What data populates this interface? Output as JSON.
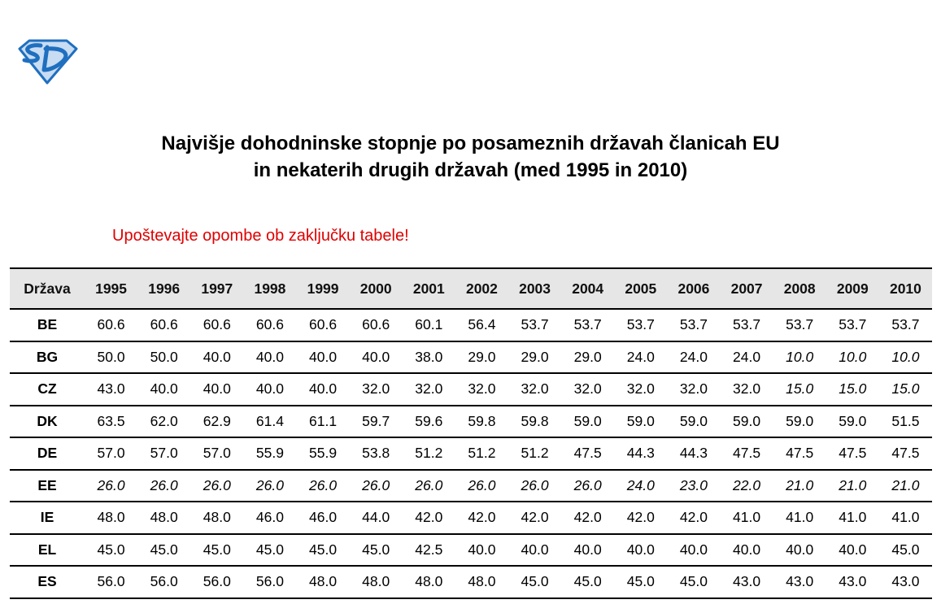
{
  "logo": {
    "text": "SD",
    "colors": {
      "primary": "#1f6fc0",
      "light": "#c8dcf2"
    }
  },
  "title": {
    "line1": "Najvišje dohodninske stopnje po posameznih državah članicah EU",
    "line2": "in nekaterih drugih državah (med 1995 in 2010)"
  },
  "note": "Upoštevajte opombe ob zaključku tabele!",
  "note_color": "#e00000",
  "table": {
    "headers": [
      "Država",
      "1995",
      "1996",
      "1997",
      "1998",
      "1999",
      "2000",
      "2001",
      "2002",
      "2003",
      "2004",
      "2005",
      "2006",
      "2007",
      "2008",
      "2009",
      "2010"
    ],
    "rows": [
      {
        "country": "BE",
        "values": [
          "60.6",
          "60.6",
          "60.6",
          "60.6",
          "60.6",
          "60.6",
          "60.1",
          "56.4",
          "53.7",
          "53.7",
          "53.7",
          "53.7",
          "53.7",
          "53.7",
          "53.7",
          "53.7"
        ],
        "italic": []
      },
      {
        "country": "BG",
        "values": [
          "50.0",
          "50.0",
          "40.0",
          "40.0",
          "40.0",
          "40.0",
          "38.0",
          "29.0",
          "29.0",
          "29.0",
          "24.0",
          "24.0",
          "24.0",
          "10.0",
          "10.0",
          "10.0"
        ],
        "italic": [
          "2008",
          "2009",
          "2010"
        ]
      },
      {
        "country": "CZ",
        "values": [
          "43.0",
          "40.0",
          "40.0",
          "40.0",
          "40.0",
          "32.0",
          "32.0",
          "32.0",
          "32.0",
          "32.0",
          "32.0",
          "32.0",
          "32.0",
          "15.0",
          "15.0",
          "15.0"
        ],
        "italic": [
          "2008",
          "2009",
          "2010"
        ]
      },
      {
        "country": "DK",
        "values": [
          "63.5",
          "62.0",
          "62.9",
          "61.4",
          "61.1",
          "59.7",
          "59.6",
          "59.8",
          "59.8",
          "59.0",
          "59.0",
          "59.0",
          "59.0",
          "59.0",
          "59.0",
          "51.5"
        ],
        "italic": []
      },
      {
        "country": "DE",
        "values": [
          "57.0",
          "57.0",
          "57.0",
          "55.9",
          "55.9",
          "53.8",
          "51.2",
          "51.2",
          "51.2",
          "47.5",
          "44.3",
          "44.3",
          "47.5",
          "47.5",
          "47.5",
          "47.5"
        ],
        "italic": []
      },
      {
        "country": "EE",
        "values": [
          "26.0",
          "26.0",
          "26.0",
          "26.0",
          "26.0",
          "26.0",
          "26.0",
          "26.0",
          "26.0",
          "26.0",
          "24.0",
          "23.0",
          "22.0",
          "21.0",
          "21.0",
          "21.0"
        ],
        "italic": [
          "1995",
          "1996",
          "1997",
          "1998",
          "1999",
          "2000",
          "2001",
          "2002",
          "2003",
          "2004",
          "2005",
          "2006",
          "2007",
          "2008",
          "2009",
          "2010"
        ]
      },
      {
        "country": "IE",
        "values": [
          "48.0",
          "48.0",
          "48.0",
          "46.0",
          "46.0",
          "44.0",
          "42.0",
          "42.0",
          "42.0",
          "42.0",
          "42.0",
          "42.0",
          "41.0",
          "41.0",
          "41.0",
          "41.0"
        ],
        "italic": []
      },
      {
        "country": "EL",
        "values": [
          "45.0",
          "45.0",
          "45.0",
          "45.0",
          "45.0",
          "45.0",
          "42.5",
          "40.0",
          "40.0",
          "40.0",
          "40.0",
          "40.0",
          "40.0",
          "40.0",
          "40.0",
          "45.0"
        ],
        "italic": []
      },
      {
        "country": "ES",
        "values": [
          "56.0",
          "56.0",
          "56.0",
          "56.0",
          "48.0",
          "48.0",
          "48.0",
          "48.0",
          "45.0",
          "45.0",
          "45.0",
          "45.0",
          "43.0",
          "43.0",
          "43.0",
          "43.0"
        ],
        "italic": []
      }
    ]
  }
}
